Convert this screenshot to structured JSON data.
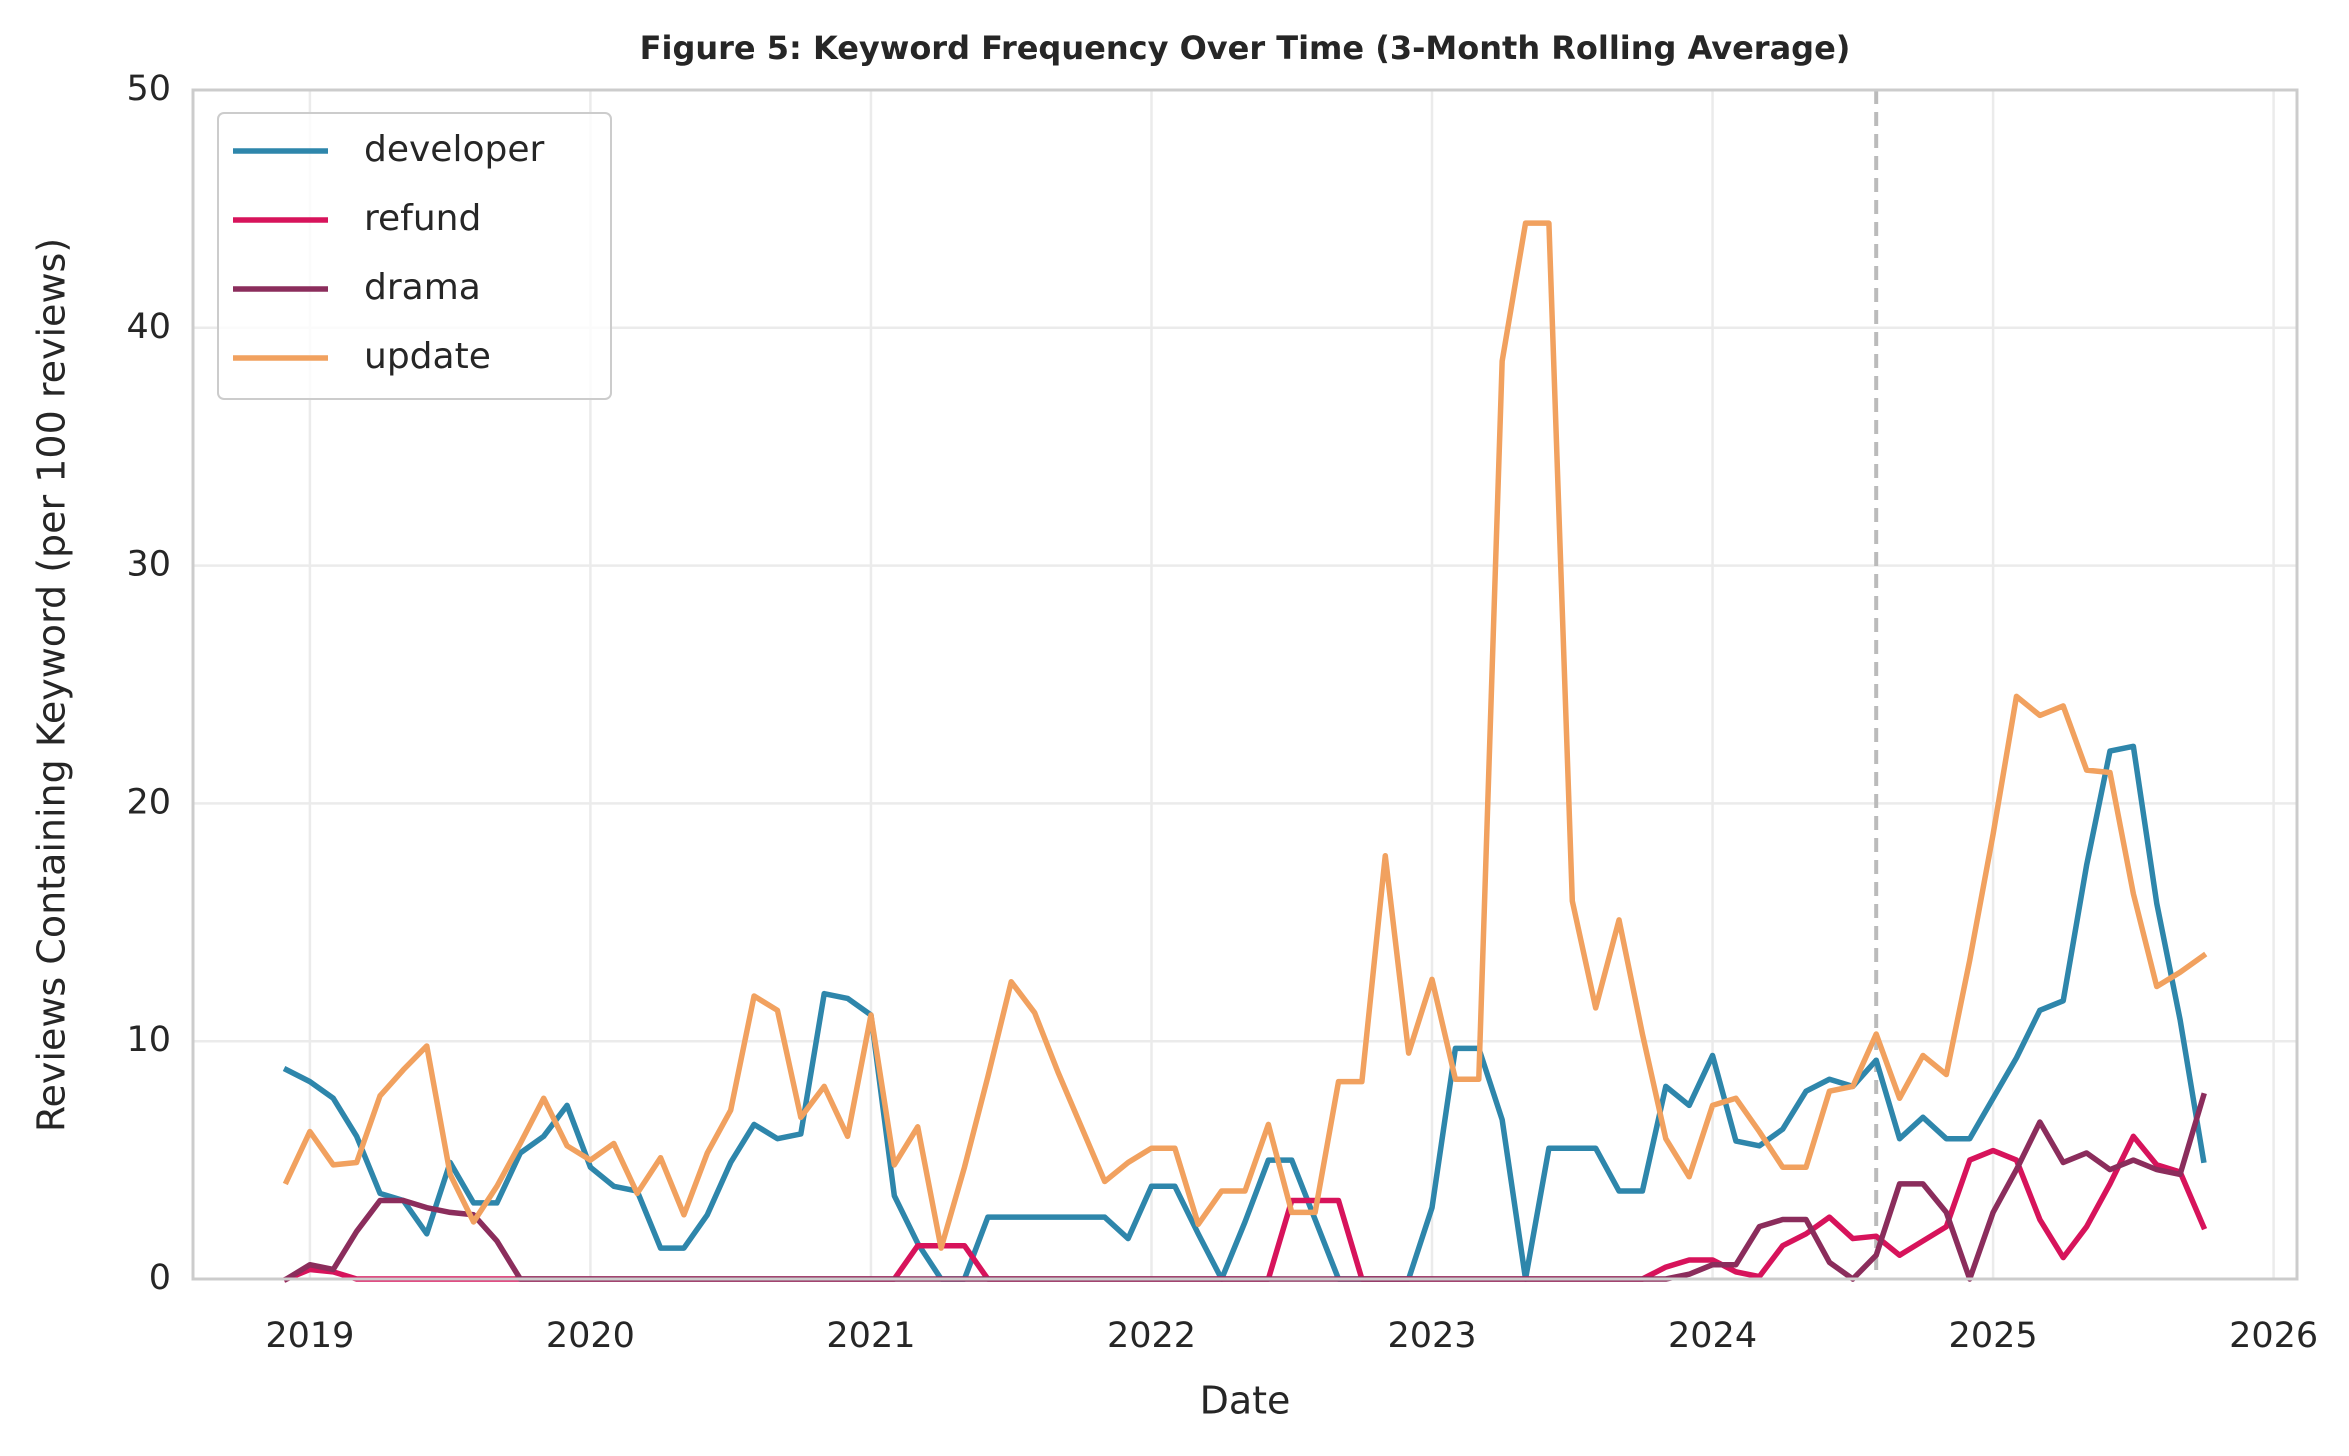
{
  "chart_data": {
    "type": "line",
    "title": "Figure 5: Keyword Frequency Over Time (3-Month Rolling Average)",
    "x_label": "Date",
    "y_label": "Reviews Containing Keyword (per 100 reviews)",
    "x": [
      "2018-12",
      "2019-01",
      "2019-02",
      "2019-03",
      "2019-04",
      "2019-05",
      "2019-06",
      "2019-07",
      "2019-08",
      "2019-09",
      "2019-10",
      "2019-11",
      "2019-12",
      "2020-01",
      "2020-02",
      "2020-03",
      "2020-04",
      "2020-05",
      "2020-06",
      "2020-07",
      "2020-08",
      "2020-09",
      "2020-10",
      "2020-11",
      "2020-12",
      "2021-01",
      "2021-02",
      "2021-03",
      "2021-04",
      "2021-05",
      "2021-06",
      "2021-07",
      "2021-08",
      "2021-09",
      "2021-10",
      "2021-11",
      "2021-12",
      "2022-01",
      "2022-02",
      "2022-03",
      "2022-04",
      "2022-05",
      "2022-06",
      "2022-07",
      "2022-08",
      "2022-09",
      "2022-10",
      "2022-11",
      "2022-12",
      "2023-01",
      "2023-02",
      "2023-03",
      "2023-04",
      "2023-05",
      "2023-06",
      "2023-07",
      "2023-08",
      "2023-09",
      "2023-10",
      "2023-11",
      "2023-12",
      "2024-01",
      "2024-02",
      "2024-03",
      "2024-04",
      "2024-05",
      "2024-06",
      "2024-07",
      "2024-08",
      "2024-09",
      "2024-10",
      "2024-11",
      "2024-12",
      "2025-01",
      "2025-02",
      "2025-03",
      "2025-04",
      "2025-05",
      "2025-06",
      "2025-07",
      "2025-08",
      "2025-09",
      "2025-10"
    ],
    "series": [
      {
        "name": "developer",
        "color": "#2e86ab",
        "values": [
          8.8,
          8.3,
          7.6,
          6.0,
          3.6,
          3.3,
          1.9,
          4.9,
          3.2,
          3.2,
          5.3,
          6.0,
          7.3,
          4.7,
          3.9,
          3.7,
          1.3,
          1.3,
          2.7,
          4.9,
          6.5,
          5.9,
          6.1,
          12.0,
          11.8,
          11.1,
          3.5,
          1.5,
          0,
          0,
          2.6,
          2.6,
          2.6,
          2.6,
          2.6,
          2.6,
          1.7,
          3.9,
          3.9,
          1.9,
          0,
          2.4,
          5.0,
          5.0,
          2.5,
          0,
          0,
          0,
          0,
          3.0,
          9.7,
          9.7,
          6.7,
          0,
          5.5,
          5.5,
          5.5,
          3.7,
          3.7,
          8.1,
          7.3,
          9.4,
          5.8,
          5.6,
          6.3,
          7.9,
          8.4,
          8.1,
          9.2,
          5.9,
          6.8,
          5.9,
          5.9,
          7.6,
          9.3,
          11.3,
          11.7,
          17.4,
          22.2,
          22.4,
          15.8,
          10.9,
          5.0
        ]
      },
      {
        "name": "refund",
        "color": "#d7135b",
        "values": [
          0,
          0.4,
          0.3,
          0,
          0,
          0,
          0,
          0,
          0,
          0,
          0,
          0,
          0,
          0,
          0,
          0,
          0,
          0,
          0,
          0,
          0,
          0,
          0,
          0,
          0,
          0,
          0,
          1.4,
          1.4,
          1.4,
          0,
          0,
          0,
          0,
          0,
          0,
          0,
          0,
          0,
          0,
          0,
          0,
          0,
          3.3,
          3.3,
          3.3,
          0,
          0,
          0,
          0,
          0,
          0,
          0,
          0,
          0,
          0,
          0,
          0,
          0,
          0.5,
          0.8,
          0.8,
          0.3,
          0.1,
          1.4,
          1.9,
          2.6,
          1.7,
          1.8,
          1.0,
          1.6,
          2.2,
          5.0,
          5.4,
          5.0,
          2.5,
          0.9,
          2.2,
          4.0,
          6.0,
          4.8,
          4.5,
          2.2
        ]
      },
      {
        "name": "drama",
        "color": "#8b2d5c",
        "values": [
          0,
          0.6,
          0.4,
          2.0,
          3.3,
          3.3,
          3.0,
          2.8,
          2.7,
          1.6,
          0,
          0,
          0,
          0,
          0,
          0,
          0,
          0,
          0,
          0,
          0,
          0,
          0,
          0,
          0,
          0,
          0,
          0,
          0,
          0,
          0,
          0,
          0,
          0,
          0,
          0,
          0,
          0,
          0,
          0,
          0,
          0,
          0,
          0,
          0,
          0,
          0,
          0,
          0,
          0,
          0,
          0,
          0,
          0,
          0,
          0,
          0,
          0,
          0,
          0,
          0.2,
          0.6,
          0.6,
          2.2,
          2.5,
          2.5,
          0.7,
          0,
          1.0,
          4.0,
          4.0,
          2.8,
          0,
          2.8,
          4.6,
          6.6,
          4.9,
          5.3,
          4.6,
          5.0,
          4.6,
          4.4,
          7.7
        ]
      },
      {
        "name": "update",
        "color": "#f1a15f",
        "values": [
          4.1,
          6.2,
          4.8,
          4.9,
          7.7,
          8.8,
          9.8,
          4.4,
          2.4,
          3.9,
          5.7,
          7.6,
          5.6,
          5.0,
          5.7,
          3.6,
          5.1,
          2.7,
          5.3,
          7.1,
          11.9,
          11.3,
          6.8,
          8.1,
          6.0,
          11.1,
          4.8,
          6.4,
          1.3,
          4.7,
          8.5,
          12.5,
          11.2,
          8.7,
          6.4,
          4.1,
          4.9,
          5.5,
          5.5,
          2.3,
          3.7,
          3.7,
          6.5,
          2.8,
          2.8,
          8.3,
          8.3,
          17.8,
          9.5,
          12.6,
          8.4,
          8.4,
          38.6,
          44.4,
          44.4,
          15.9,
          11.4,
          15.1,
          10.3,
          5.9,
          4.3,
          7.3,
          7.6,
          6.2,
          4.7,
          4.7,
          7.9,
          8.1,
          10.3,
          7.6,
          9.4,
          8.6,
          13.4,
          18.7,
          24.5,
          23.7,
          24.1,
          21.4,
          21.3,
          16.2,
          12.3,
          12.9,
          13.6
        ]
      }
    ],
    "xlim": [
      "2018-08",
      "2026-02"
    ],
    "xticks": [
      {
        "value": "2019-01",
        "label": "2019"
      },
      {
        "value": "2020-01",
        "label": "2020"
      },
      {
        "value": "2021-01",
        "label": "2021"
      },
      {
        "value": "2022-01",
        "label": "2022"
      },
      {
        "value": "2023-01",
        "label": "2023"
      },
      {
        "value": "2024-01",
        "label": "2024"
      },
      {
        "value": "2025-01",
        "label": "2025"
      },
      {
        "value": "2026-01",
        "label": "2026"
      }
    ],
    "ylim": [
      0,
      50
    ],
    "yticks": [
      0,
      10,
      20,
      30,
      40,
      50
    ],
    "grid": true,
    "legend": "upper left",
    "vline": "2024-08",
    "vline_color": "#bbbbbb"
  }
}
